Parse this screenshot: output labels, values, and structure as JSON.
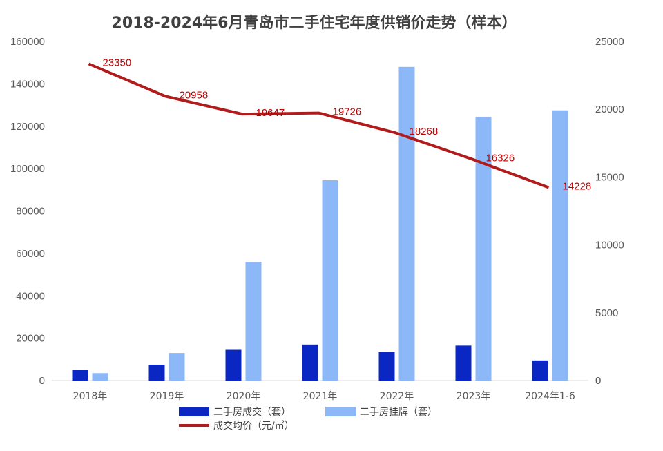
{
  "chart_data": {
    "type": "bar",
    "title": "2018-2024年6月青岛市二手住宅年度供销价走势（样本）",
    "categories": [
      "2018年",
      "2019年",
      "2020年",
      "2021年",
      "2022年",
      "2023年",
      "2024年1-6"
    ],
    "series": [
      {
        "name": "二手房成交（套）",
        "type": "bar",
        "axis": "left",
        "color": "#0a27c4",
        "values": [
          5000,
          7500,
          14500,
          17000,
          13500,
          16500,
          9500
        ]
      },
      {
        "name": "二手房挂牌（套）",
        "type": "bar",
        "axis": "left",
        "color": "#8cb8f8",
        "values": [
          3500,
          13000,
          56000,
          94500,
          148000,
          124500,
          127500
        ]
      },
      {
        "name": "成交均价（元/㎡）",
        "type": "line",
        "axis": "right",
        "color": "#b11b1b",
        "values": [
          23350,
          20958,
          19647,
          19726,
          18268,
          16326,
          14228
        ],
        "labels": [
          "23350",
          "20958",
          "19647",
          "19726",
          "18268",
          "16326",
          "14228"
        ]
      }
    ],
    "y_left": {
      "ylim": [
        0,
        160000
      ],
      "ticks": [
        "0",
        "20000",
        "40000",
        "60000",
        "80000",
        "100000",
        "120000",
        "140000",
        "160000"
      ]
    },
    "y_right": {
      "ylim": [
        0,
        25000
      ],
      "ticks": [
        "0",
        "5000",
        "10000",
        "15000",
        "20000",
        "25000"
      ]
    },
    "grid": false,
    "legend_position": "bottom"
  }
}
